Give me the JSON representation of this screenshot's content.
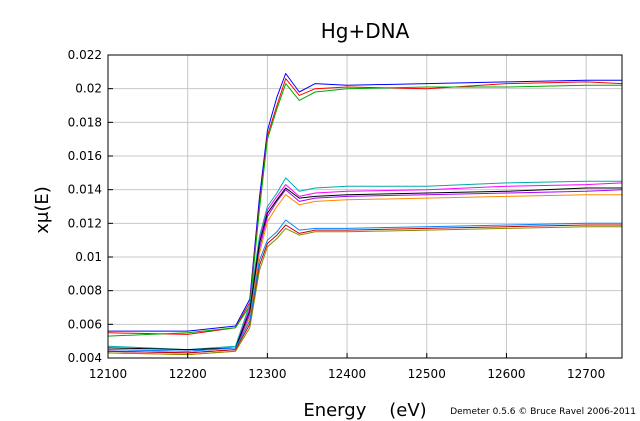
{
  "chart_data": {
    "type": "line",
    "title": "Hg+DNA",
    "xlabel": "Energy    (eV)",
    "ylabel": "xμ(E)",
    "credit": "Demeter 0.5.6 © Bruce Ravel 2006-2011",
    "xlim": [
      12100,
      12745
    ],
    "ylim": [
      0.004,
      0.022
    ],
    "xticks": [
      12100,
      12200,
      12300,
      12400,
      12500,
      12600,
      12700
    ],
    "xtick_labels": [
      "12100",
      "12200",
      "12300",
      "12400",
      "12500",
      "12600",
      "12700"
    ],
    "yticks": [
      0.004,
      0.006,
      0.008,
      0.01,
      0.012,
      0.014,
      0.016,
      0.018,
      0.02,
      0.022
    ],
    "ytick_labels": [
      "0.004",
      "0.006",
      "0.008",
      "0.01",
      "0.012",
      "0.014",
      "0.016",
      "0.018",
      "0.02",
      "0.022"
    ],
    "grid": true,
    "colors": [
      "#0000ff",
      "#ff0000",
      "#00aa00",
      "#ff00ff",
      "#aa00ff",
      "#ff8800",
      "#00aaaa",
      "#000000",
      "#cc0000",
      "#888800",
      "#0088ff",
      "#cc00cc"
    ],
    "series": [
      {
        "x": [
          12100,
          12200,
          12260,
          12278,
          12290,
          12300,
          12312,
          12323,
          12340,
          12360,
          12400,
          12500,
          12600,
          12700,
          12745
        ],
        "y": [
          0.0056,
          0.0056,
          0.0059,
          0.0075,
          0.0135,
          0.0175,
          0.0195,
          0.0209,
          0.0198,
          0.0203,
          0.0202,
          0.0203,
          0.0204,
          0.0205,
          0.0205
        ]
      },
      {
        "x": [
          12100,
          12200,
          12260,
          12278,
          12290,
          12300,
          12312,
          12323,
          12340,
          12360,
          12400,
          12500,
          12600,
          12700,
          12745
        ],
        "y": [
          0.0055,
          0.0054,
          0.0058,
          0.0073,
          0.013,
          0.0172,
          0.019,
          0.0206,
          0.0196,
          0.02,
          0.0201,
          0.02,
          0.0203,
          0.0204,
          0.0203
        ]
      },
      {
        "x": [
          12100,
          12200,
          12260,
          12278,
          12290,
          12300,
          12312,
          12323,
          12340,
          12360,
          12400,
          12500,
          12600,
          12700,
          12745
        ],
        "y": [
          0.0053,
          0.0055,
          0.0058,
          0.0071,
          0.0128,
          0.017,
          0.0188,
          0.0203,
          0.0193,
          0.0198,
          0.02,
          0.0201,
          0.0201,
          0.0202,
          0.0202
        ]
      },
      {
        "x": [
          12100,
          12200,
          12260,
          12278,
          12290,
          12300,
          12312,
          12323,
          12340,
          12360,
          12400,
          12500,
          12600,
          12700,
          12745
        ],
        "y": [
          0.0045,
          0.0044,
          0.0046,
          0.007,
          0.011,
          0.0128,
          0.0136,
          0.0143,
          0.0136,
          0.0138,
          0.0139,
          0.014,
          0.0142,
          0.0143,
          0.0144
        ]
      },
      {
        "x": [
          12100,
          12200,
          12260,
          12278,
          12290,
          12300,
          12312,
          12323,
          12340,
          12360,
          12400,
          12500,
          12600,
          12700,
          12745
        ],
        "y": [
          0.0044,
          0.0043,
          0.0045,
          0.0066,
          0.0105,
          0.0124,
          0.0133,
          0.014,
          0.0133,
          0.0135,
          0.0136,
          0.0137,
          0.0138,
          0.0139,
          0.014
        ]
      },
      {
        "x": [
          12100,
          12200,
          12260,
          12278,
          12290,
          12300,
          12312,
          12323,
          12340,
          12360,
          12400,
          12500,
          12600,
          12700,
          12745
        ],
        "y": [
          0.0043,
          0.0042,
          0.0044,
          0.0064,
          0.0102,
          0.0121,
          0.013,
          0.0137,
          0.0131,
          0.0133,
          0.0134,
          0.0135,
          0.0136,
          0.0137,
          0.0137
        ]
      },
      {
        "x": [
          12100,
          12200,
          12260,
          12278,
          12290,
          12300,
          12312,
          12323,
          12340,
          12360,
          12400,
          12500,
          12600,
          12700,
          12745
        ],
        "y": [
          0.0047,
          0.0045,
          0.0047,
          0.0072,
          0.0112,
          0.013,
          0.0138,
          0.0147,
          0.0139,
          0.0141,
          0.0142,
          0.0142,
          0.0144,
          0.0145,
          0.0145
        ]
      },
      {
        "x": [
          12100,
          12200,
          12260,
          12278,
          12290,
          12300,
          12312,
          12323,
          12340,
          12360,
          12400,
          12500,
          12600,
          12700,
          12745
        ],
        "y": [
          0.0046,
          0.0045,
          0.0046,
          0.0068,
          0.0108,
          0.0126,
          0.0134,
          0.0141,
          0.0135,
          0.0136,
          0.0137,
          0.0138,
          0.0139,
          0.0141,
          0.0141
        ]
      },
      {
        "x": [
          12100,
          12200,
          12260,
          12278,
          12290,
          12300,
          12312,
          12323,
          12340,
          12360,
          12400,
          12500,
          12600,
          12700,
          12745
        ],
        "y": [
          0.0044,
          0.0043,
          0.0045,
          0.006,
          0.0095,
          0.0108,
          0.0113,
          0.0119,
          0.0114,
          0.0116,
          0.0116,
          0.0117,
          0.0118,
          0.0119,
          0.0119
        ]
      },
      {
        "x": [
          12100,
          12200,
          12260,
          12278,
          12290,
          12300,
          12312,
          12323,
          12340,
          12360,
          12400,
          12500,
          12600,
          12700,
          12745
        ],
        "y": [
          0.0043,
          0.0042,
          0.0044,
          0.0058,
          0.0092,
          0.0106,
          0.0111,
          0.0117,
          0.0113,
          0.0115,
          0.0115,
          0.0116,
          0.0117,
          0.0118,
          0.0118
        ]
      },
      {
        "x": [
          12100,
          12200,
          12260,
          12278,
          12290,
          12300,
          12312,
          12323,
          12340,
          12360,
          12400,
          12500,
          12600,
          12700,
          12745
        ],
        "y": [
          0.0045,
          0.0044,
          0.0046,
          0.0062,
          0.0098,
          0.011,
          0.0115,
          0.0122,
          0.0116,
          0.0117,
          0.0117,
          0.0118,
          0.0119,
          0.012,
          0.012
        ]
      }
    ]
  }
}
